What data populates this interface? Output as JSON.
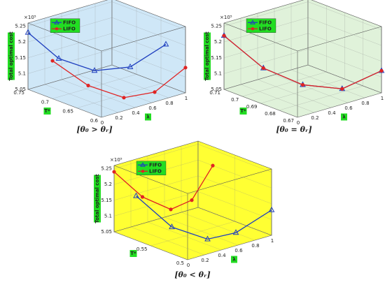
{
  "chart_data": [
    {
      "type": "line3d",
      "caption": "[θ₀ > θᵣ]",
      "zlabel": "Total optimal cost",
      "xlabel": "λ",
      "ylabel": "T*",
      "multiplier": "×10⁵",
      "bg": "#cfe7f7",
      "xlim": [
        0,
        1
      ],
      "xticks": [
        0,
        0.2,
        0.4,
        0.6,
        0.8,
        1
      ],
      "tlim": [
        0.6,
        0.75
      ],
      "tticks": [
        0.6,
        0.65,
        0.7,
        0.75
      ],
      "zlim": [
        5.05,
        5.26
      ],
      "zticks": [
        5.05,
        5.1,
        5.15,
        5.2,
        5.25
      ],
      "series": [
        {
          "name": "FIFO",
          "color": "#1f3fbf",
          "marker": "triangle",
          "x": [
            0,
            0.25,
            0.5,
            0.75,
            1
          ],
          "t": [
            0.75,
            0.73,
            0.7,
            0.67,
            0.64
          ],
          "values": [
            5.23,
            5.14,
            5.1,
            5.11,
            5.18
          ]
        },
        {
          "name": "LIFO",
          "color": "#e02424",
          "marker": "circle",
          "x": [
            0,
            0.25,
            0.5,
            0.75,
            1
          ],
          "t": [
            0.7,
            0.67,
            0.64,
            0.62,
            0.6
          ],
          "values": [
            5.17,
            5.09,
            5.05,
            5.06,
            5.13
          ]
        }
      ]
    },
    {
      "type": "line3d",
      "caption": "[θ₀ = θᵣ]",
      "zlabel": "Total optimal cost",
      "xlabel": "λ",
      "ylabel": "T*",
      "multiplier": "×10⁵",
      "bg": "#e0f2da",
      "xlim": [
        0,
        1
      ],
      "xticks": [
        0,
        0.2,
        0.4,
        0.6,
        0.8,
        1
      ],
      "tlim": [
        0.67,
        0.71
      ],
      "tticks": [
        0.67,
        0.68,
        0.69,
        0.7,
        0.71
      ],
      "zlim": [
        5.05,
        5.26
      ],
      "zticks": [
        5.05,
        5.1,
        5.15,
        5.2,
        5.25
      ],
      "series": [
        {
          "name": "FIFO",
          "color": "#1f3fbf",
          "marker": "triangle",
          "x": [
            0,
            0.25,
            0.5,
            0.75,
            1
          ],
          "t": [
            0.71,
            0.7,
            0.69,
            0.68,
            0.67
          ],
          "values": [
            5.22,
            5.12,
            5.07,
            5.06,
            5.12
          ]
        },
        {
          "name": "LIFO",
          "color": "#e02424",
          "marker": "circle",
          "x": [
            0,
            0.25,
            0.5,
            0.75,
            1
          ],
          "t": [
            0.71,
            0.7,
            0.69,
            0.68,
            0.67
          ],
          "values": [
            5.22,
            5.12,
            5.07,
            5.06,
            5.12
          ]
        }
      ]
    },
    {
      "type": "line3d",
      "caption": "[θ₀ < θᵣ]",
      "zlabel": "Total optimal cost",
      "xlabel": "λ",
      "ylabel": "T*",
      "multiplier": "×10⁵",
      "bg": "#ffff33",
      "xlim": [
        0,
        1
      ],
      "xticks": [
        0,
        0.2,
        0.4,
        0.6,
        0.8,
        1
      ],
      "tlim": [
        0.5,
        0.6
      ],
      "tticks": [
        0.5,
        0.55
      ],
      "zlim": [
        5.05,
        5.26
      ],
      "zticks": [
        5.05,
        5.1,
        5.15,
        5.2,
        5.25
      ],
      "series": [
        {
          "name": "FIFO",
          "color": "#1f3fbf",
          "marker": "triangle",
          "x": [
            0,
            0.25,
            0.5,
            0.75,
            1
          ],
          "t": [
            0.57,
            0.55,
            0.53,
            0.52,
            0.5
          ],
          "values": [
            5.19,
            5.09,
            5.05,
            5.06,
            5.13
          ]
        },
        {
          "name": "LIFO",
          "color": "#e02424",
          "marker": "circle",
          "x": [
            0,
            0.25,
            0.5,
            0.75,
            1
          ],
          "t": [
            0.6,
            0.59,
            0.58,
            0.58,
            0.58
          ],
          "values": [
            5.24,
            5.15,
            5.1,
            5.11,
            5.2
          ]
        }
      ]
    }
  ]
}
